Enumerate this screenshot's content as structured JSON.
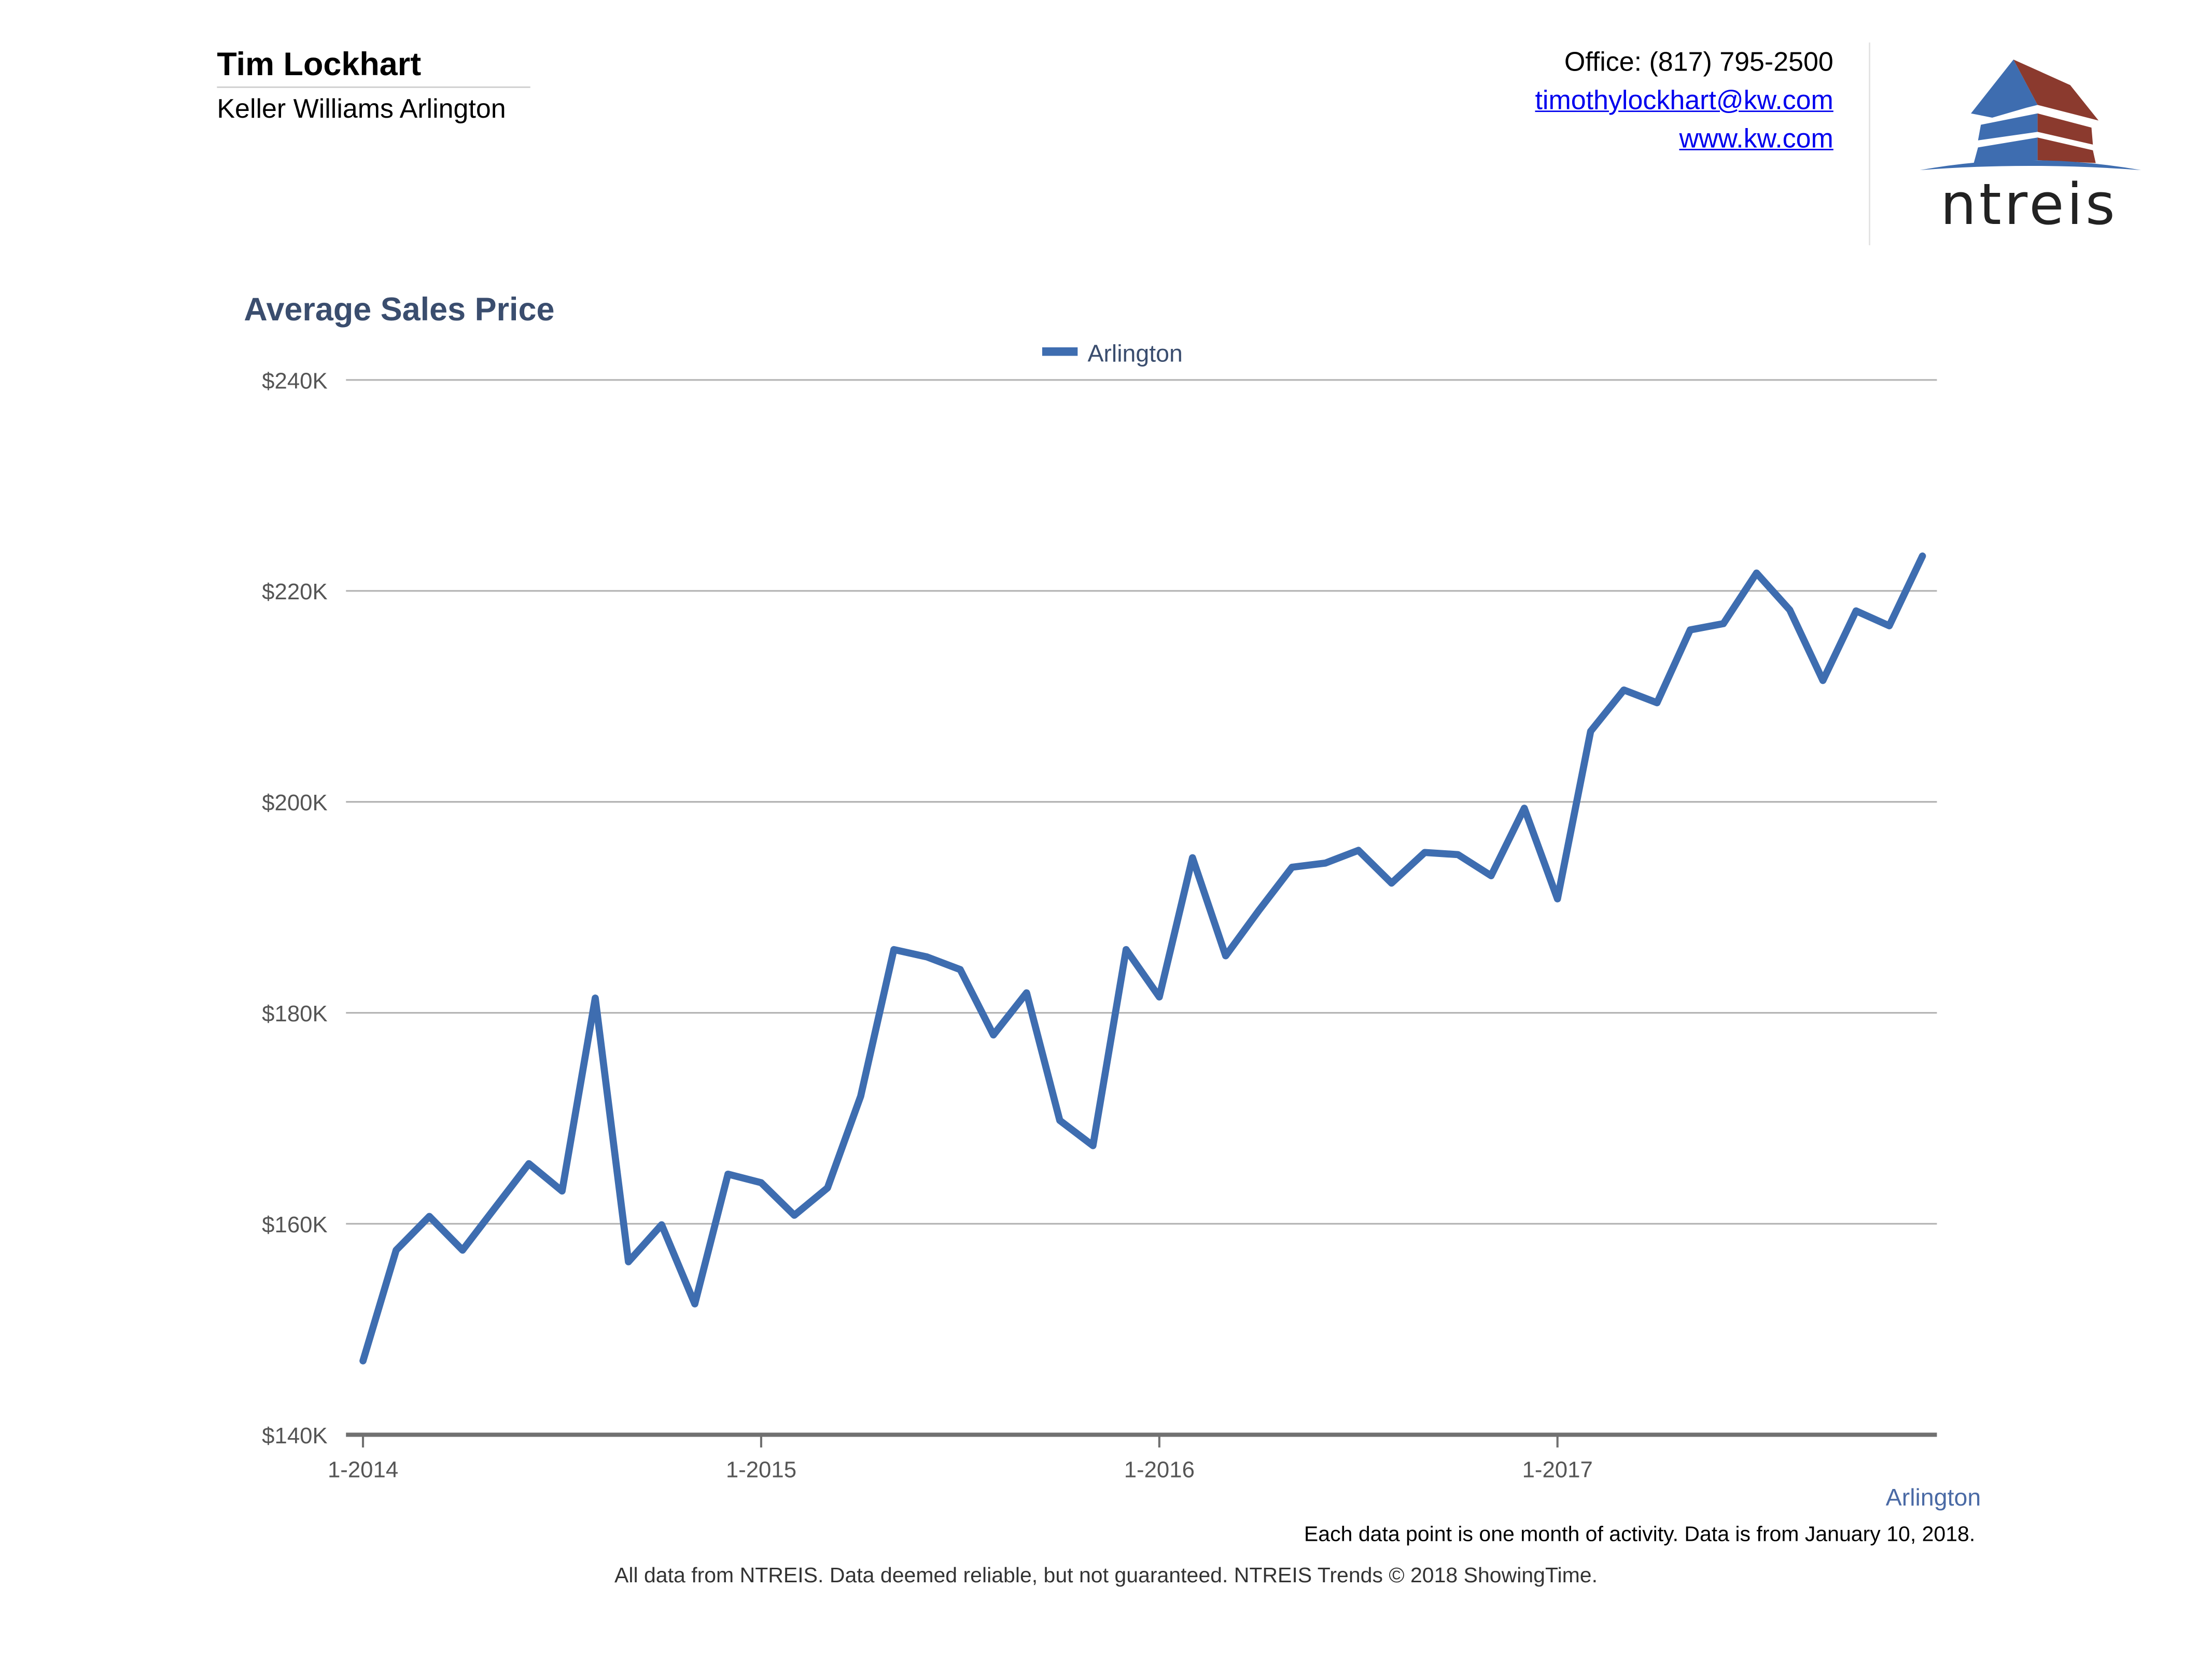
{
  "header": {
    "agent_name": "Tim Lockhart",
    "company": "Keller Williams Arlington",
    "office": "Office: (817) 795-2500",
    "email": "timothylockhart@kw.com",
    "website": "www.kw.com",
    "logo_text": "ntreis"
  },
  "colors": {
    "series": "#3e6db0",
    "title": "#3a4d6e",
    "logo_blue": "#3e6db0",
    "logo_red": "#8b3a2e"
  },
  "chart_data": {
    "type": "line",
    "title": "Average Sales Price",
    "xlabel": "",
    "ylabel": "",
    "ylim": [
      140000,
      240000
    ],
    "y_ticks": [
      {
        "value": 140000,
        "label": "$140K"
      },
      {
        "value": 160000,
        "label": "$160K"
      },
      {
        "value": 180000,
        "label": "$180K"
      },
      {
        "value": 200000,
        "label": "$200K"
      },
      {
        "value": 220000,
        "label": "$220K"
      },
      {
        "value": 240000,
        "label": "$240K"
      }
    ],
    "x_ticks": [
      {
        "index": 0,
        "label": "1-2014"
      },
      {
        "index": 12,
        "label": "1-2015"
      },
      {
        "index": 24,
        "label": "1-2016"
      },
      {
        "index": 36,
        "label": "1-2017"
      }
    ],
    "grid": true,
    "legend": {
      "position": "top-center",
      "entries": [
        "Arlington"
      ]
    },
    "series": [
      {
        "name": "Arlington",
        "values": [
          147000,
          157500,
          160700,
          157500,
          161600,
          165700,
          163100,
          181400,
          156400,
          159900,
          152400,
          164700,
          163900,
          160800,
          163400,
          172100,
          186000,
          185300,
          184100,
          177900,
          181900,
          169800,
          167400,
          186000,
          181500,
          194700,
          185400,
          189700,
          193800,
          194200,
          195400,
          192300,
          195200,
          195000,
          193000,
          199400,
          190800,
          206700,
          210600,
          209400,
          216300,
          216900,
          221700,
          218200,
          211500,
          218100,
          216700,
          223300
        ]
      }
    ],
    "series_label": "Arlington",
    "note": "Each data point is one month of activity. Data is from January 10, 2018."
  },
  "footer": "All data from NTREIS. Data deemed reliable, but not guaranteed. NTREIS Trends © 2018 ShowingTime."
}
